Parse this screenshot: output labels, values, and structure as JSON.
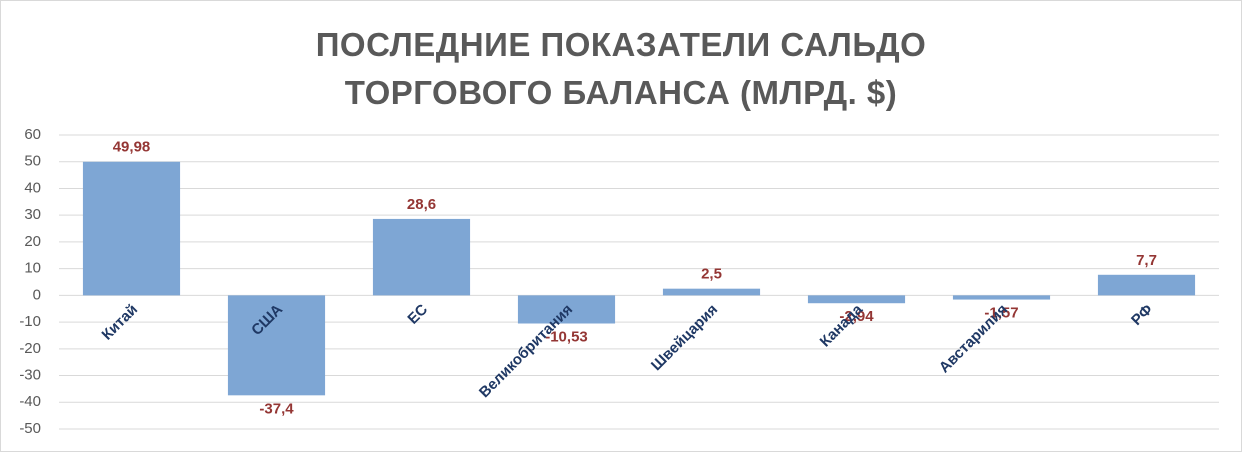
{
  "chart_data": {
    "type": "bar",
    "title": "ПОСЛЕДНИЕ ПОКАЗАТЕЛИ САЛЬДО ТОРГОВОГО БАЛАНСА (МЛРД. $)",
    "categories": [
      "Китай",
      "США",
      "ЕС",
      "Великобритания",
      "Швейцария",
      "Канада",
      "Австарилия",
      "РФ"
    ],
    "values": [
      49.98,
      -37.4,
      28.6,
      -10.53,
      2.5,
      -2.94,
      -1.57,
      7.7
    ],
    "value_labels": [
      "49,98",
      "-37,4",
      "28,6",
      "-10,53",
      "2,5",
      "-2,94",
      "-1,57",
      "7,7"
    ],
    "color": "#7ea6d4",
    "ylim": [
      -50,
      60
    ],
    "yticks": [
      -50,
      -40,
      -30,
      -20,
      -10,
      0,
      10,
      20,
      30,
      40,
      50,
      60
    ],
    "grid": true
  }
}
